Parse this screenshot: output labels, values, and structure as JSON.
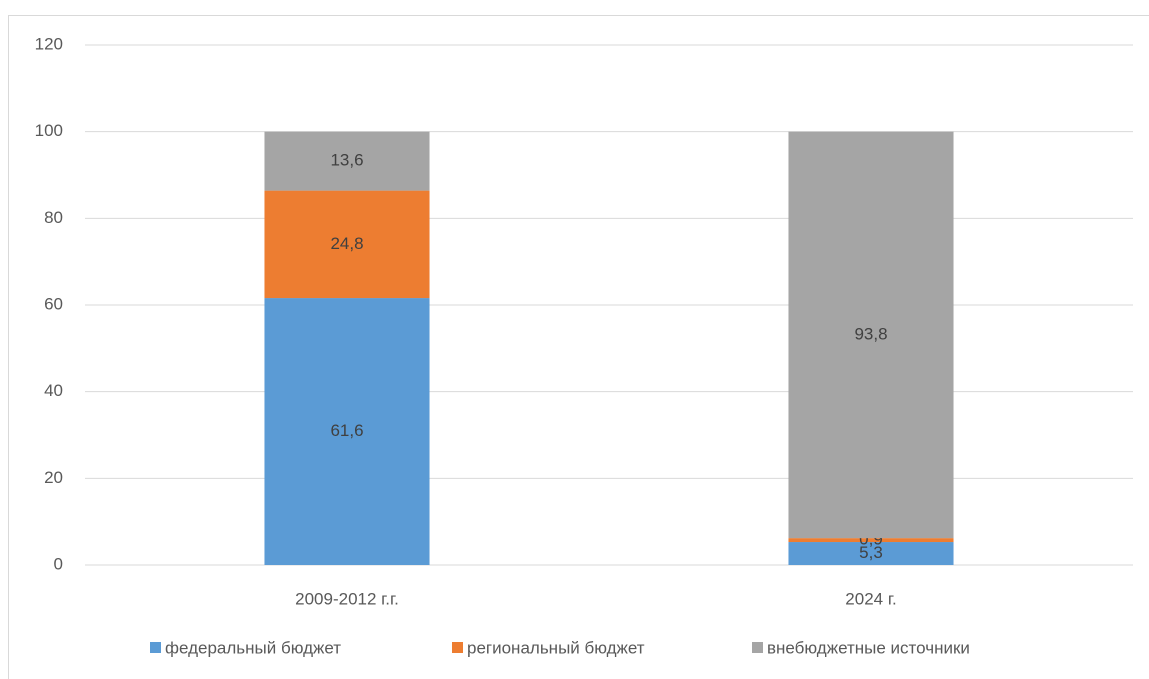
{
  "chart_data": {
    "type": "stacked_bar",
    "categories": [
      "2009-2012 г.г.",
      "2024 г."
    ],
    "series": [
      {
        "name": "федеральный бюджет",
        "color": "#5b9bd5",
        "values": [
          61.6,
          5.3
        ],
        "value_labels": [
          "61,6",
          "5,3"
        ]
      },
      {
        "name": "региональный бюджет",
        "color": "#ed7d31",
        "values": [
          24.8,
          0.9
        ],
        "value_labels": [
          "24,8",
          "0,9"
        ]
      },
      {
        "name": "внебюджетные источники",
        "color": "#a5a5a5",
        "values": [
          13.6,
          93.8
        ],
        "value_labels": [
          "13,6",
          "93,8"
        ]
      }
    ],
    "ylim": [
      0,
      120
    ],
    "yticks": [
      0,
      20,
      40,
      60,
      80,
      100,
      120
    ],
    "grid": true,
    "legend": "bottom"
  }
}
